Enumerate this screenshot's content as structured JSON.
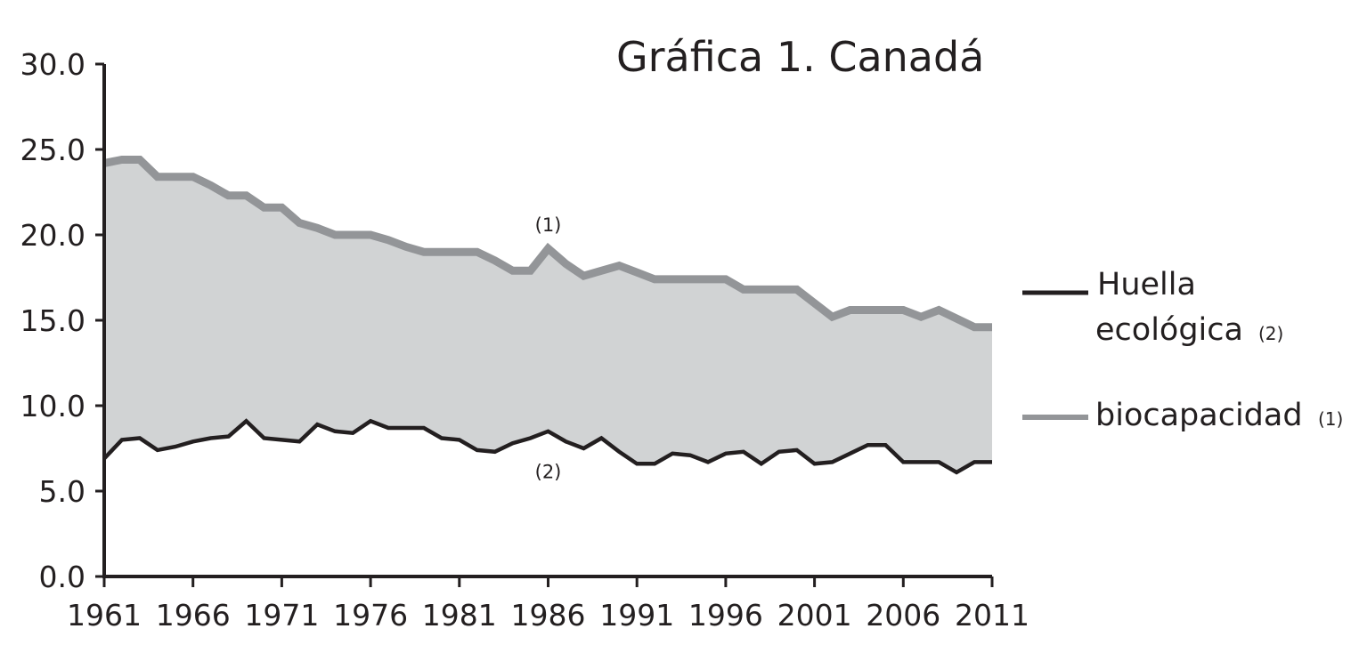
{
  "chart_data": {
    "type": "area",
    "title": "Gráfica 1. Canadá",
    "xlabel": "",
    "ylabel": "",
    "xlim": [
      1961,
      2011
    ],
    "ylim": [
      0,
      30
    ],
    "x_ticks": [
      1961,
      1966,
      1971,
      1976,
      1981,
      1986,
      1991,
      1996,
      2001,
      2006,
      2011
    ],
    "y_ticks": [
      "0.0",
      "5.0",
      "10.0",
      "15.0",
      "20.0",
      "25.0",
      "30.0"
    ],
    "grid": false,
    "legend_position": "right",
    "x": [
      1961,
      1962,
      1963,
      1964,
      1965,
      1966,
      1967,
      1968,
      1969,
      1970,
      1971,
      1972,
      1973,
      1974,
      1975,
      1976,
      1977,
      1978,
      1979,
      1980,
      1981,
      1982,
      1983,
      1984,
      1985,
      1986,
      1987,
      1988,
      1989,
      1990,
      1991,
      1992,
      1993,
      1994,
      1995,
      1996,
      1997,
      1998,
      1999,
      2000,
      2001,
      2002,
      2003,
      2004,
      2005,
      2006,
      2007,
      2008,
      2009,
      2010,
      2011
    ],
    "series": [
      {
        "name": "Huella ecológica",
        "legend_line1": "Huella",
        "legend_line2": "ecológica",
        "legend_note": "(2)",
        "color": "#231f20",
        "values": [
          6.9,
          8.0,
          8.1,
          7.4,
          7.6,
          7.9,
          8.1,
          8.2,
          9.1,
          8.1,
          8.0,
          7.9,
          8.9,
          8.5,
          8.4,
          9.1,
          8.7,
          8.7,
          8.7,
          8.1,
          8.0,
          7.4,
          7.3,
          7.8,
          8.1,
          8.5,
          7.9,
          7.5,
          8.1,
          7.3,
          6.6,
          6.6,
          7.2,
          7.1,
          6.7,
          7.2,
          7.3,
          6.6,
          7.3,
          7.4,
          6.6,
          6.7,
          7.2,
          7.7,
          7.7,
          6.7,
          6.7,
          6.7,
          6.1,
          6.7,
          6.7
        ]
      },
      {
        "name": "biocapacidad",
        "legend_note": "(1)",
        "color": "#939598",
        "values": [
          24.2,
          24.4,
          24.4,
          23.4,
          23.4,
          23.4,
          22.9,
          22.3,
          22.3,
          21.6,
          21.6,
          20.7,
          20.4,
          20.0,
          20.0,
          20.0,
          19.7,
          19.3,
          19.0,
          19.0,
          19.0,
          19.0,
          18.5,
          17.9,
          17.9,
          19.2,
          18.3,
          17.6,
          17.9,
          18.2,
          17.8,
          17.4,
          17.4,
          17.4,
          17.4,
          17.4,
          16.8,
          16.8,
          16.8,
          16.8,
          16.0,
          15.2,
          15.6,
          15.6,
          15.6,
          15.6,
          15.2,
          15.6,
          15.1,
          14.6,
          14.6
        ]
      }
    ],
    "fill_between_color": "#d1d3d4",
    "annotations": [
      {
        "text": "(1)",
        "x": 1986,
        "y": 20.2
      },
      {
        "text": "(2)",
        "x": 1986,
        "y": 6.8
      }
    ]
  }
}
